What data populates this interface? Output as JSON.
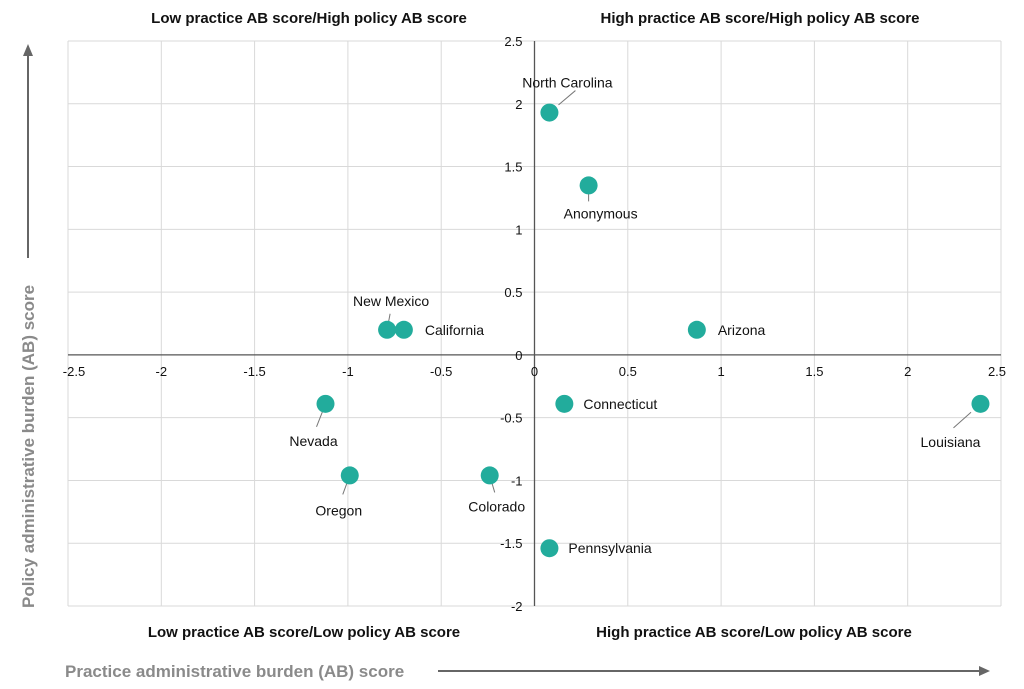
{
  "chart_data": {
    "type": "scatter",
    "xlabel": "Practice administrative burden (AB) score",
    "ylabel": "Policy administrative burden (AB) score",
    "xlim": [
      -2.5,
      2.5
    ],
    "ylim": [
      -2,
      2.5
    ],
    "x_ticks": [
      "-2.5",
      "-2",
      "-1.5",
      "-1",
      "-0.5",
      "0",
      "0.5",
      "1",
      "1.5",
      "2",
      "2.5"
    ],
    "y_ticks": [
      "2.5",
      "2",
      "1.5",
      "1",
      "0.5",
      "0",
      "-0.5",
      "-1",
      "-1.5",
      "-2"
    ],
    "grid": true,
    "quadrant_labels": {
      "top_left": "Low practice AB score/High policy AB score",
      "top_right": "High practice AB score/High policy AB score",
      "bottom_left": "Low practice AB score/Low policy AB score",
      "bottom_right": "High practice AB score/Low policy AB score"
    },
    "point_color": "#22ac9c",
    "points": [
      {
        "label": "North Carolina",
        "x": 0.08,
        "y": 1.93
      },
      {
        "label": "Anonymous",
        "x": 0.29,
        "y": 1.35
      },
      {
        "label": "New Mexico",
        "x": -0.79,
        "y": 0.2
      },
      {
        "label": "California",
        "x": -0.7,
        "y": 0.2
      },
      {
        "label": "Arizona",
        "x": 0.87,
        "y": 0.2
      },
      {
        "label": "Connecticut",
        "x": 0.16,
        "y": -0.39
      },
      {
        "label": "Louisiana",
        "x": 2.39,
        "y": -0.39
      },
      {
        "label": "Nevada",
        "x": -1.12,
        "y": -0.39
      },
      {
        "label": "Oregon",
        "x": -0.99,
        "y": -0.96
      },
      {
        "label": "Colorado",
        "x": -0.24,
        "y": -0.96
      },
      {
        "label": "Pennsylvania",
        "x": 0.08,
        "y": -1.54
      }
    ]
  }
}
